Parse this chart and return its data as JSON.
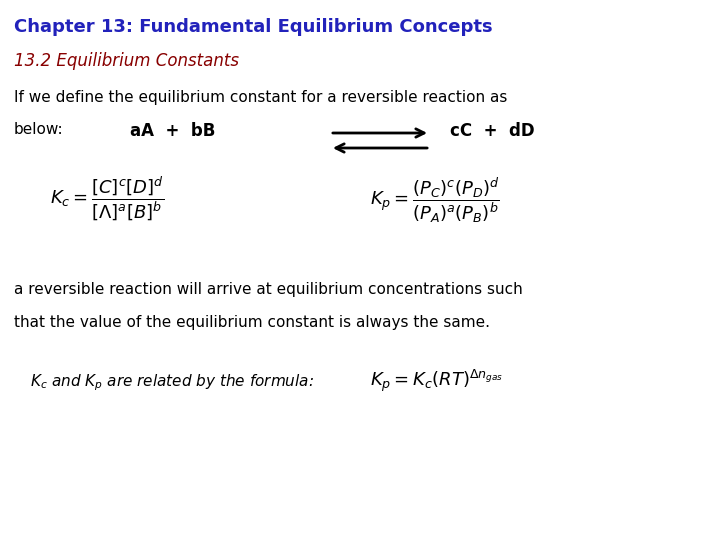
{
  "title": "Chapter 13: Fundamental Equilibrium Concepts",
  "title_color": "#2222bb",
  "subtitle": "13.2 Equilibrium Constants",
  "subtitle_color": "#880000",
  "body_color": "#000000",
  "background_color": "#ffffff",
  "line1": "If we define the equilibrium constant for a reversible reaction as",
  "line2_left": "below:",
  "reaction_left": "aA  +  bB",
  "reaction_right": "cC  +  dD",
  "kc_formula": "$K_c = \\dfrac{[C]^c[D]^d}{[\\Lambda]^a[B]^b}$",
  "kp_formula": "$K_p = \\dfrac{(P_C)^c(P_D)^d}{(P_A)^a(P_B)^b}$",
  "line3": "a reversible reaction will arrive at equilibrium concentrations such",
  "line4": "that the value of the equilibrium constant is always the same.",
  "last_line_text": "$K_c$ and $K_p$ are related by the formula:",
  "last_formula": "$K_p = K_c(RT)^{\\Delta n_{gas}}$",
  "font_size_title": 13,
  "font_size_subtitle": 12,
  "font_size_body": 11,
  "font_size_reaction": 12,
  "font_size_formula": 13,
  "font_size_last": 11
}
